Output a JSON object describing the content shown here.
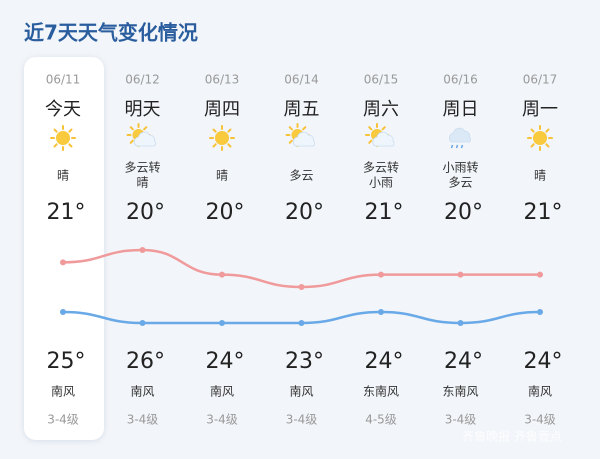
{
  "header": {
    "title": "近7天天气变化情况"
  },
  "days": [
    {
      "date": "06/11",
      "day": "今天",
      "condition": [
        "晴"
      ],
      "low": {
        "value": 21,
        "label": "21°"
      },
      "high": {
        "value": 25,
        "label": "25°"
      },
      "wind": "南风",
      "level": "3-4级"
    },
    {
      "date": "06/12",
      "day": "明天",
      "condition": [
        "多云转",
        "晴"
      ],
      "low": {
        "value": 20,
        "label": "20°"
      },
      "high": {
        "value": 26,
        "label": "26°"
      },
      "wind": "南风",
      "level": "3-4级"
    },
    {
      "date": "06/13",
      "day": "周四",
      "condition": [
        "晴"
      ],
      "low": {
        "value": 20,
        "label": "20°"
      },
      "high": {
        "value": 24,
        "label": "24°"
      },
      "wind": "南风",
      "level": "3-4级"
    },
    {
      "date": "06/14",
      "day": "周五",
      "condition": [
        "多云"
      ],
      "low": {
        "value": 20,
        "label": "20°"
      },
      "high": {
        "value": 23,
        "label": "23°"
      },
      "wind": "南风",
      "level": "3-4级"
    },
    {
      "date": "06/15",
      "day": "周六",
      "condition": [
        "多云转",
        "小雨"
      ],
      "low": {
        "value": 21,
        "label": "21°"
      },
      "high": {
        "value": 24,
        "label": "24°"
      },
      "wind": "东南风",
      "level": "4-5级"
    },
    {
      "date": "06/16",
      "day": "周日",
      "condition": [
        "小雨转",
        "多云"
      ],
      "low": {
        "value": 20,
        "label": "20°"
      },
      "high": {
        "value": 24,
        "label": "24°"
      },
      "wind": "东南风",
      "level": "3-4级"
    },
    {
      "date": "06/17",
      "day": "周一",
      "condition": [
        "晴"
      ],
      "low": {
        "value": 21,
        "label": "21°"
      },
      "high": {
        "value": 24,
        "label": "24°"
      },
      "wind": "南风",
      "level": "3-4级"
    }
  ],
  "watermark": "齐鲁晚报 齐鲁壹点"
}
